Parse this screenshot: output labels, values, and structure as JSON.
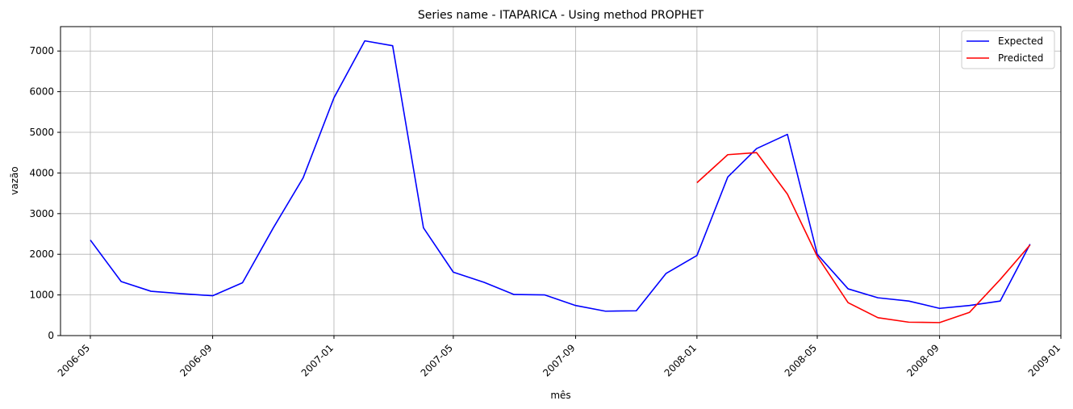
{
  "chart_data": {
    "type": "line",
    "title": "Series name - ITAPARICA - Using method PROPHET",
    "xlabel": "mês",
    "ylabel": "vazão",
    "xlim": [
      "2006-04-01",
      "2009-01-01"
    ],
    "ylim": [
      0,
      7600
    ],
    "grid": true,
    "legend_position": "top-right",
    "x_ticks": [
      "2006-05",
      "2006-09",
      "2007-01",
      "2007-05",
      "2007-09",
      "2008-01",
      "2008-05",
      "2008-09",
      "2009-01"
    ],
    "y_ticks": [
      0,
      1000,
      2000,
      3000,
      4000,
      5000,
      6000,
      7000
    ],
    "series": [
      {
        "name": "Expected",
        "color": "#0000ff",
        "points": [
          [
            "2006-05-01",
            2350
          ],
          [
            "2006-06-01",
            1330
          ],
          [
            "2006-07-01",
            1090
          ],
          [
            "2006-08-01",
            1030
          ],
          [
            "2006-09-01",
            980
          ],
          [
            "2006-10-01",
            1300
          ],
          [
            "2006-11-01",
            2650
          ],
          [
            "2006-12-01",
            3880
          ],
          [
            "2007-01-01",
            5850
          ],
          [
            "2007-02-01",
            7250
          ],
          [
            "2007-03-01",
            7130
          ],
          [
            "2007-04-01",
            2650
          ],
          [
            "2007-05-01",
            1560
          ],
          [
            "2007-06-01",
            1310
          ],
          [
            "2007-07-01",
            1010
          ],
          [
            "2007-08-01",
            1000
          ],
          [
            "2007-09-01",
            740
          ],
          [
            "2007-10-01",
            600
          ],
          [
            "2007-11-01",
            610
          ],
          [
            "2007-12-01",
            1530
          ],
          [
            "2008-01-01",
            1970
          ],
          [
            "2008-02-01",
            3900
          ],
          [
            "2008-03-01",
            4600
          ],
          [
            "2008-04-01",
            4950
          ],
          [
            "2008-05-01",
            2000
          ],
          [
            "2008-06-01",
            1150
          ],
          [
            "2008-07-01",
            930
          ],
          [
            "2008-08-01",
            850
          ],
          [
            "2008-09-01",
            670
          ],
          [
            "2008-10-01",
            740
          ],
          [
            "2008-11-01",
            850
          ],
          [
            "2008-12-01",
            2250
          ]
        ]
      },
      {
        "name": "Predicted",
        "color": "#ff0000",
        "points": [
          [
            "2008-01-01",
            3760
          ],
          [
            "2008-02-01",
            4450
          ],
          [
            "2008-03-01",
            4500
          ],
          [
            "2008-04-01",
            3480
          ],
          [
            "2008-05-01",
            1950
          ],
          [
            "2008-06-01",
            810
          ],
          [
            "2008-07-01",
            440
          ],
          [
            "2008-08-01",
            330
          ],
          [
            "2008-09-01",
            320
          ],
          [
            "2008-10-01",
            570
          ],
          [
            "2008-11-01",
            1380
          ],
          [
            "2008-12-01",
            2230
          ]
        ]
      }
    ]
  }
}
